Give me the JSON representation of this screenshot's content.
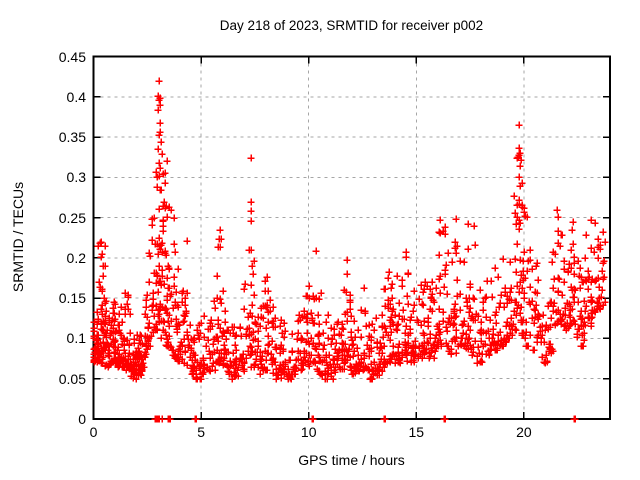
{
  "window": {
    "background": "#ffffff"
  },
  "chart_data": {
    "type": "scatter",
    "title": "Day 218 of 2023, SRMTID for receiver p002",
    "xlabel": "GPS time / hours",
    "ylabel": "SRMTID / TECUs",
    "xlim": [
      0,
      24
    ],
    "ylim": [
      0,
      0.45
    ],
    "xticks": [
      0,
      5,
      10,
      15,
      20
    ],
    "xtick_labels": [
      "0",
      "5",
      "10",
      "15",
      "20"
    ],
    "yticks": [
      0,
      0.05,
      0.1,
      0.15,
      0.2,
      0.25,
      0.3,
      0.35,
      0.4,
      0.45
    ],
    "ytick_labels": [
      "0",
      "0.05",
      "0.1",
      "0.15",
      "0.2",
      "0.25",
      "0.3",
      "0.35",
      "0.4",
      "0.45"
    ],
    "grid": true,
    "legend_position": "none",
    "marker": {
      "shape": "plus",
      "color": "#ff0000",
      "size": 7,
      "stroke_width": 1.5
    },
    "grid_color": "#a6a6a6",
    "axis_color": "#000000",
    "series_name": "SRMTID",
    "spike_points": [
      [
        0.35,
        0.22
      ],
      [
        0.38,
        0.205
      ],
      [
        0.42,
        0.19
      ],
      [
        0.45,
        0.178
      ],
      [
        0.52,
        0.215
      ],
      [
        0.55,
        0.19
      ],
      [
        0.4,
        0.162
      ],
      [
        3.05,
        0.42
      ],
      [
        3.0,
        0.401
      ],
      [
        3.06,
        0.396
      ],
      [
        3.1,
        0.39
      ],
      [
        3.02,
        0.384
      ],
      [
        3.1,
        0.367
      ],
      [
        3.04,
        0.352
      ],
      [
        3.12,
        0.344
      ],
      [
        3.0,
        0.335
      ],
      [
        3.18,
        0.329
      ],
      [
        3.08,
        0.312
      ],
      [
        3.22,
        0.304
      ],
      [
        2.96,
        0.301
      ],
      [
        3.3,
        0.293
      ],
      [
        3.15,
        0.284
      ],
      [
        3.26,
        0.27
      ],
      [
        3.34,
        0.262
      ],
      [
        3.42,
        0.251
      ],
      [
        3.6,
        0.26
      ],
      [
        3.72,
        0.249
      ],
      [
        4.33,
        0.221
      ],
      [
        5.9,
        0.235
      ],
      [
        5.93,
        0.224
      ],
      [
        5.87,
        0.214
      ],
      [
        7.3,
        0.324
      ],
      [
        7.31,
        0.27
      ],
      [
        7.33,
        0.258
      ],
      [
        7.3,
        0.246
      ],
      [
        7.22,
        0.21
      ],
      [
        7.45,
        0.196
      ],
      [
        10.32,
        0.208
      ],
      [
        11.78,
        0.198
      ],
      [
        14.52,
        0.207
      ],
      [
        16.08,
        0.247
      ],
      [
        16.12,
        0.231
      ],
      [
        16.85,
        0.248
      ],
      [
        17.38,
        0.242
      ],
      [
        17.7,
        0.24
      ],
      [
        17.73,
        0.216
      ],
      [
        19.78,
        0.365
      ],
      [
        19.75,
        0.336
      ],
      [
        19.8,
        0.33
      ],
      [
        19.72,
        0.325
      ],
      [
        19.85,
        0.321
      ],
      [
        19.8,
        0.314
      ],
      [
        19.76,
        0.301
      ],
      [
        19.83,
        0.289
      ],
      [
        19.79,
        0.272
      ],
      [
        19.9,
        0.263
      ],
      [
        19.7,
        0.251
      ],
      [
        19.62,
        0.242
      ],
      [
        20.0,
        0.262
      ],
      [
        20.03,
        0.252
      ],
      [
        21.55,
        0.259
      ],
      [
        21.58,
        0.251
      ],
      [
        22.3,
        0.244
      ],
      [
        23.1,
        0.247
      ],
      [
        23.3,
        0.243
      ],
      [
        23.68,
        0.232
      ]
    ],
    "zero_line_hours": [
      2.88,
      2.92,
      2.96,
      3.0,
      3.04,
      3.16,
      3.2,
      3.48,
      3.52,
      3.56,
      4.7,
      4.74,
      4.78,
      10.14,
      10.18,
      13.48,
      13.52,
      13.56,
      16.3,
      16.34,
      22.32,
      22.36
    ],
    "cloud_columns": [
      [
        0.08,
        24,
        0.07,
        0.14
      ],
      [
        0.2,
        20,
        0.08,
        0.135
      ],
      [
        0.35,
        16,
        0.085,
        0.22
      ],
      [
        0.5,
        20,
        0.07,
        0.16
      ],
      [
        0.65,
        18,
        0.065,
        0.125
      ],
      [
        0.8,
        18,
        0.07,
        0.13
      ],
      [
        0.95,
        18,
        0.075,
        0.15
      ],
      [
        1.1,
        18,
        0.07,
        0.135
      ],
      [
        1.25,
        15,
        0.065,
        0.12
      ],
      [
        1.4,
        16,
        0.07,
        0.15
      ],
      [
        1.55,
        15,
        0.065,
        0.16
      ],
      [
        1.7,
        15,
        0.06,
        0.12
      ],
      [
        1.85,
        17,
        0.05,
        0.1
      ],
      [
        2.0,
        17,
        0.055,
        0.105
      ],
      [
        2.15,
        15,
        0.06,
        0.11
      ],
      [
        2.3,
        13,
        0.065,
        0.13
      ],
      [
        2.45,
        12,
        0.08,
        0.17
      ],
      [
        2.6,
        13,
        0.09,
        0.21
      ],
      [
        2.75,
        14,
        0.1,
        0.26
      ],
      [
        2.9,
        16,
        0.11,
        0.31
      ],
      [
        3.05,
        22,
        0.13,
        0.41
      ],
      [
        3.2,
        18,
        0.12,
        0.33
      ],
      [
        3.35,
        16,
        0.1,
        0.27
      ],
      [
        3.5,
        15,
        0.09,
        0.24
      ],
      [
        3.65,
        14,
        0.085,
        0.22
      ],
      [
        3.8,
        14,
        0.075,
        0.19
      ],
      [
        3.95,
        14,
        0.07,
        0.17
      ],
      [
        4.1,
        15,
        0.07,
        0.19
      ],
      [
        4.3,
        13,
        0.065,
        0.16
      ],
      [
        4.5,
        13,
        0.06,
        0.13
      ],
      [
        4.7,
        13,
        0.055,
        0.12
      ],
      [
        4.9,
        13,
        0.05,
        0.115
      ],
      [
        5.1,
        12,
        0.055,
        0.12
      ],
      [
        5.3,
        12,
        0.06,
        0.13
      ],
      [
        5.5,
        13,
        0.06,
        0.14
      ],
      [
        5.7,
        13,
        0.07,
        0.16
      ],
      [
        5.88,
        15,
        0.08,
        0.23
      ],
      [
        6.05,
        13,
        0.065,
        0.15
      ],
      [
        6.25,
        13,
        0.055,
        0.12
      ],
      [
        6.45,
        13,
        0.05,
        0.115
      ],
      [
        6.65,
        12,
        0.05,
        0.11
      ],
      [
        6.85,
        12,
        0.06,
        0.125
      ],
      [
        7.05,
        13,
        0.07,
        0.17
      ],
      [
        7.3,
        16,
        0.08,
        0.21
      ],
      [
        7.5,
        13,
        0.065,
        0.16
      ],
      [
        7.7,
        13,
        0.055,
        0.14
      ],
      [
        7.9,
        14,
        0.06,
        0.16
      ],
      [
        8.1,
        15,
        0.07,
        0.185
      ],
      [
        8.3,
        13,
        0.06,
        0.15
      ],
      [
        8.5,
        13,
        0.055,
        0.125
      ],
      [
        8.7,
        13,
        0.05,
        0.115
      ],
      [
        8.9,
        13,
        0.055,
        0.12
      ],
      [
        9.1,
        12,
        0.05,
        0.115
      ],
      [
        9.3,
        12,
        0.055,
        0.12
      ],
      [
        9.5,
        13,
        0.06,
        0.13
      ],
      [
        9.7,
        13,
        0.06,
        0.14
      ],
      [
        9.9,
        14,
        0.065,
        0.16
      ],
      [
        10.1,
        15,
        0.07,
        0.19
      ],
      [
        10.3,
        15,
        0.07,
        0.205
      ],
      [
        10.5,
        13,
        0.06,
        0.16
      ],
      [
        10.7,
        13,
        0.055,
        0.13
      ],
      [
        10.9,
        13,
        0.05,
        0.12
      ],
      [
        11.1,
        13,
        0.055,
        0.12
      ],
      [
        11.3,
        13,
        0.06,
        0.125
      ],
      [
        11.5,
        13,
        0.06,
        0.14
      ],
      [
        11.7,
        15,
        0.07,
        0.19
      ],
      [
        11.9,
        14,
        0.065,
        0.165
      ],
      [
        12.1,
        13,
        0.055,
        0.13
      ],
      [
        12.3,
        13,
        0.06,
        0.14
      ],
      [
        12.5,
        14,
        0.065,
        0.165
      ],
      [
        12.7,
        13,
        0.06,
        0.14
      ],
      [
        12.9,
        13,
        0.05,
        0.12
      ],
      [
        13.1,
        13,
        0.055,
        0.125
      ],
      [
        13.3,
        13,
        0.06,
        0.13
      ],
      [
        13.5,
        15,
        0.065,
        0.165
      ],
      [
        13.7,
        14,
        0.07,
        0.17
      ],
      [
        13.9,
        15,
        0.075,
        0.19
      ],
      [
        14.1,
        14,
        0.07,
        0.17
      ],
      [
        14.3,
        14,
        0.075,
        0.18
      ],
      [
        14.5,
        15,
        0.08,
        0.205
      ],
      [
        14.7,
        14,
        0.07,
        0.165
      ],
      [
        14.9,
        13,
        0.07,
        0.15
      ],
      [
        15.1,
        13,
        0.075,
        0.16
      ],
      [
        15.3,
        14,
        0.08,
        0.17
      ],
      [
        15.5,
        14,
        0.08,
        0.175
      ],
      [
        15.7,
        14,
        0.075,
        0.165
      ],
      [
        15.9,
        15,
        0.085,
        0.2
      ],
      [
        16.1,
        16,
        0.09,
        0.235
      ],
      [
        16.35,
        15,
        0.09,
        0.24
      ],
      [
        16.6,
        14,
        0.08,
        0.2
      ],
      [
        16.85,
        16,
        0.095,
        0.24
      ],
      [
        17.1,
        14,
        0.09,
        0.215
      ],
      [
        17.35,
        14,
        0.085,
        0.23
      ],
      [
        17.6,
        14,
        0.08,
        0.18
      ],
      [
        17.85,
        13,
        0.07,
        0.16
      ],
      [
        18.1,
        14,
        0.08,
        0.17
      ],
      [
        18.35,
        14,
        0.08,
        0.18
      ],
      [
        18.6,
        14,
        0.085,
        0.19
      ],
      [
        18.85,
        14,
        0.09,
        0.2
      ],
      [
        19.1,
        14,
        0.095,
        0.21
      ],
      [
        19.35,
        14,
        0.1,
        0.22
      ],
      [
        19.6,
        16,
        0.11,
        0.28
      ],
      [
        19.8,
        20,
        0.12,
        0.345
      ],
      [
        20.0,
        16,
        0.1,
        0.27
      ],
      [
        20.2,
        14,
        0.09,
        0.215
      ],
      [
        20.45,
        14,
        0.085,
        0.195
      ],
      [
        20.7,
        15,
        0.095,
        0.2
      ],
      [
        20.95,
        14,
        0.07,
        0.15
      ],
      [
        21.2,
        13,
        0.08,
        0.165
      ],
      [
        21.45,
        16,
        0.11,
        0.25
      ],
      [
        21.7,
        16,
        0.115,
        0.24
      ],
      [
        21.95,
        16,
        0.11,
        0.225
      ],
      [
        22.2,
        18,
        0.115,
        0.24
      ],
      [
        22.45,
        16,
        0.1,
        0.225
      ],
      [
        22.7,
        16,
        0.09,
        0.215
      ],
      [
        22.95,
        18,
        0.115,
        0.24
      ],
      [
        23.2,
        16,
        0.125,
        0.235
      ],
      [
        23.45,
        16,
        0.135,
        0.235
      ],
      [
        23.65,
        10,
        0.14,
        0.225
      ]
    ],
    "cloud_params": {
      "seed": 218023,
      "x_jitter": 0.24,
      "y_skew": 2.1
    }
  }
}
